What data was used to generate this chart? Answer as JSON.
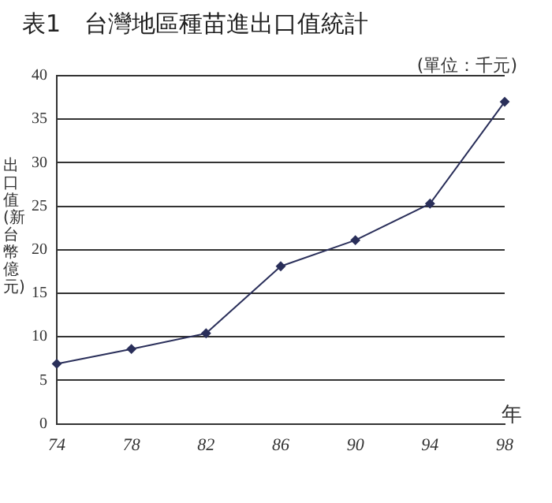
{
  "chart_data": {
    "type": "line",
    "title": "表1　台灣地區種苗進出口值統計",
    "subtitle": "(單位：千元)",
    "xlabel": "年",
    "ylabel": "出口值(新台幣億元)",
    "categories": [
      "74",
      "78",
      "82",
      "86",
      "90",
      "94",
      "98"
    ],
    "series": [
      {
        "color": "#2a2f5a",
        "values": [
          6.9,
          8.6,
          10.4,
          18.1,
          21.1,
          25.3,
          37
        ]
      }
    ],
    "ylim": [
      0,
      40
    ],
    "yticks": [
      0,
      5,
      10,
      15,
      20,
      25,
      30,
      35,
      40
    ],
    "grid": "y",
    "legend": false,
    "marker": "diamond",
    "line_style": "solid"
  }
}
